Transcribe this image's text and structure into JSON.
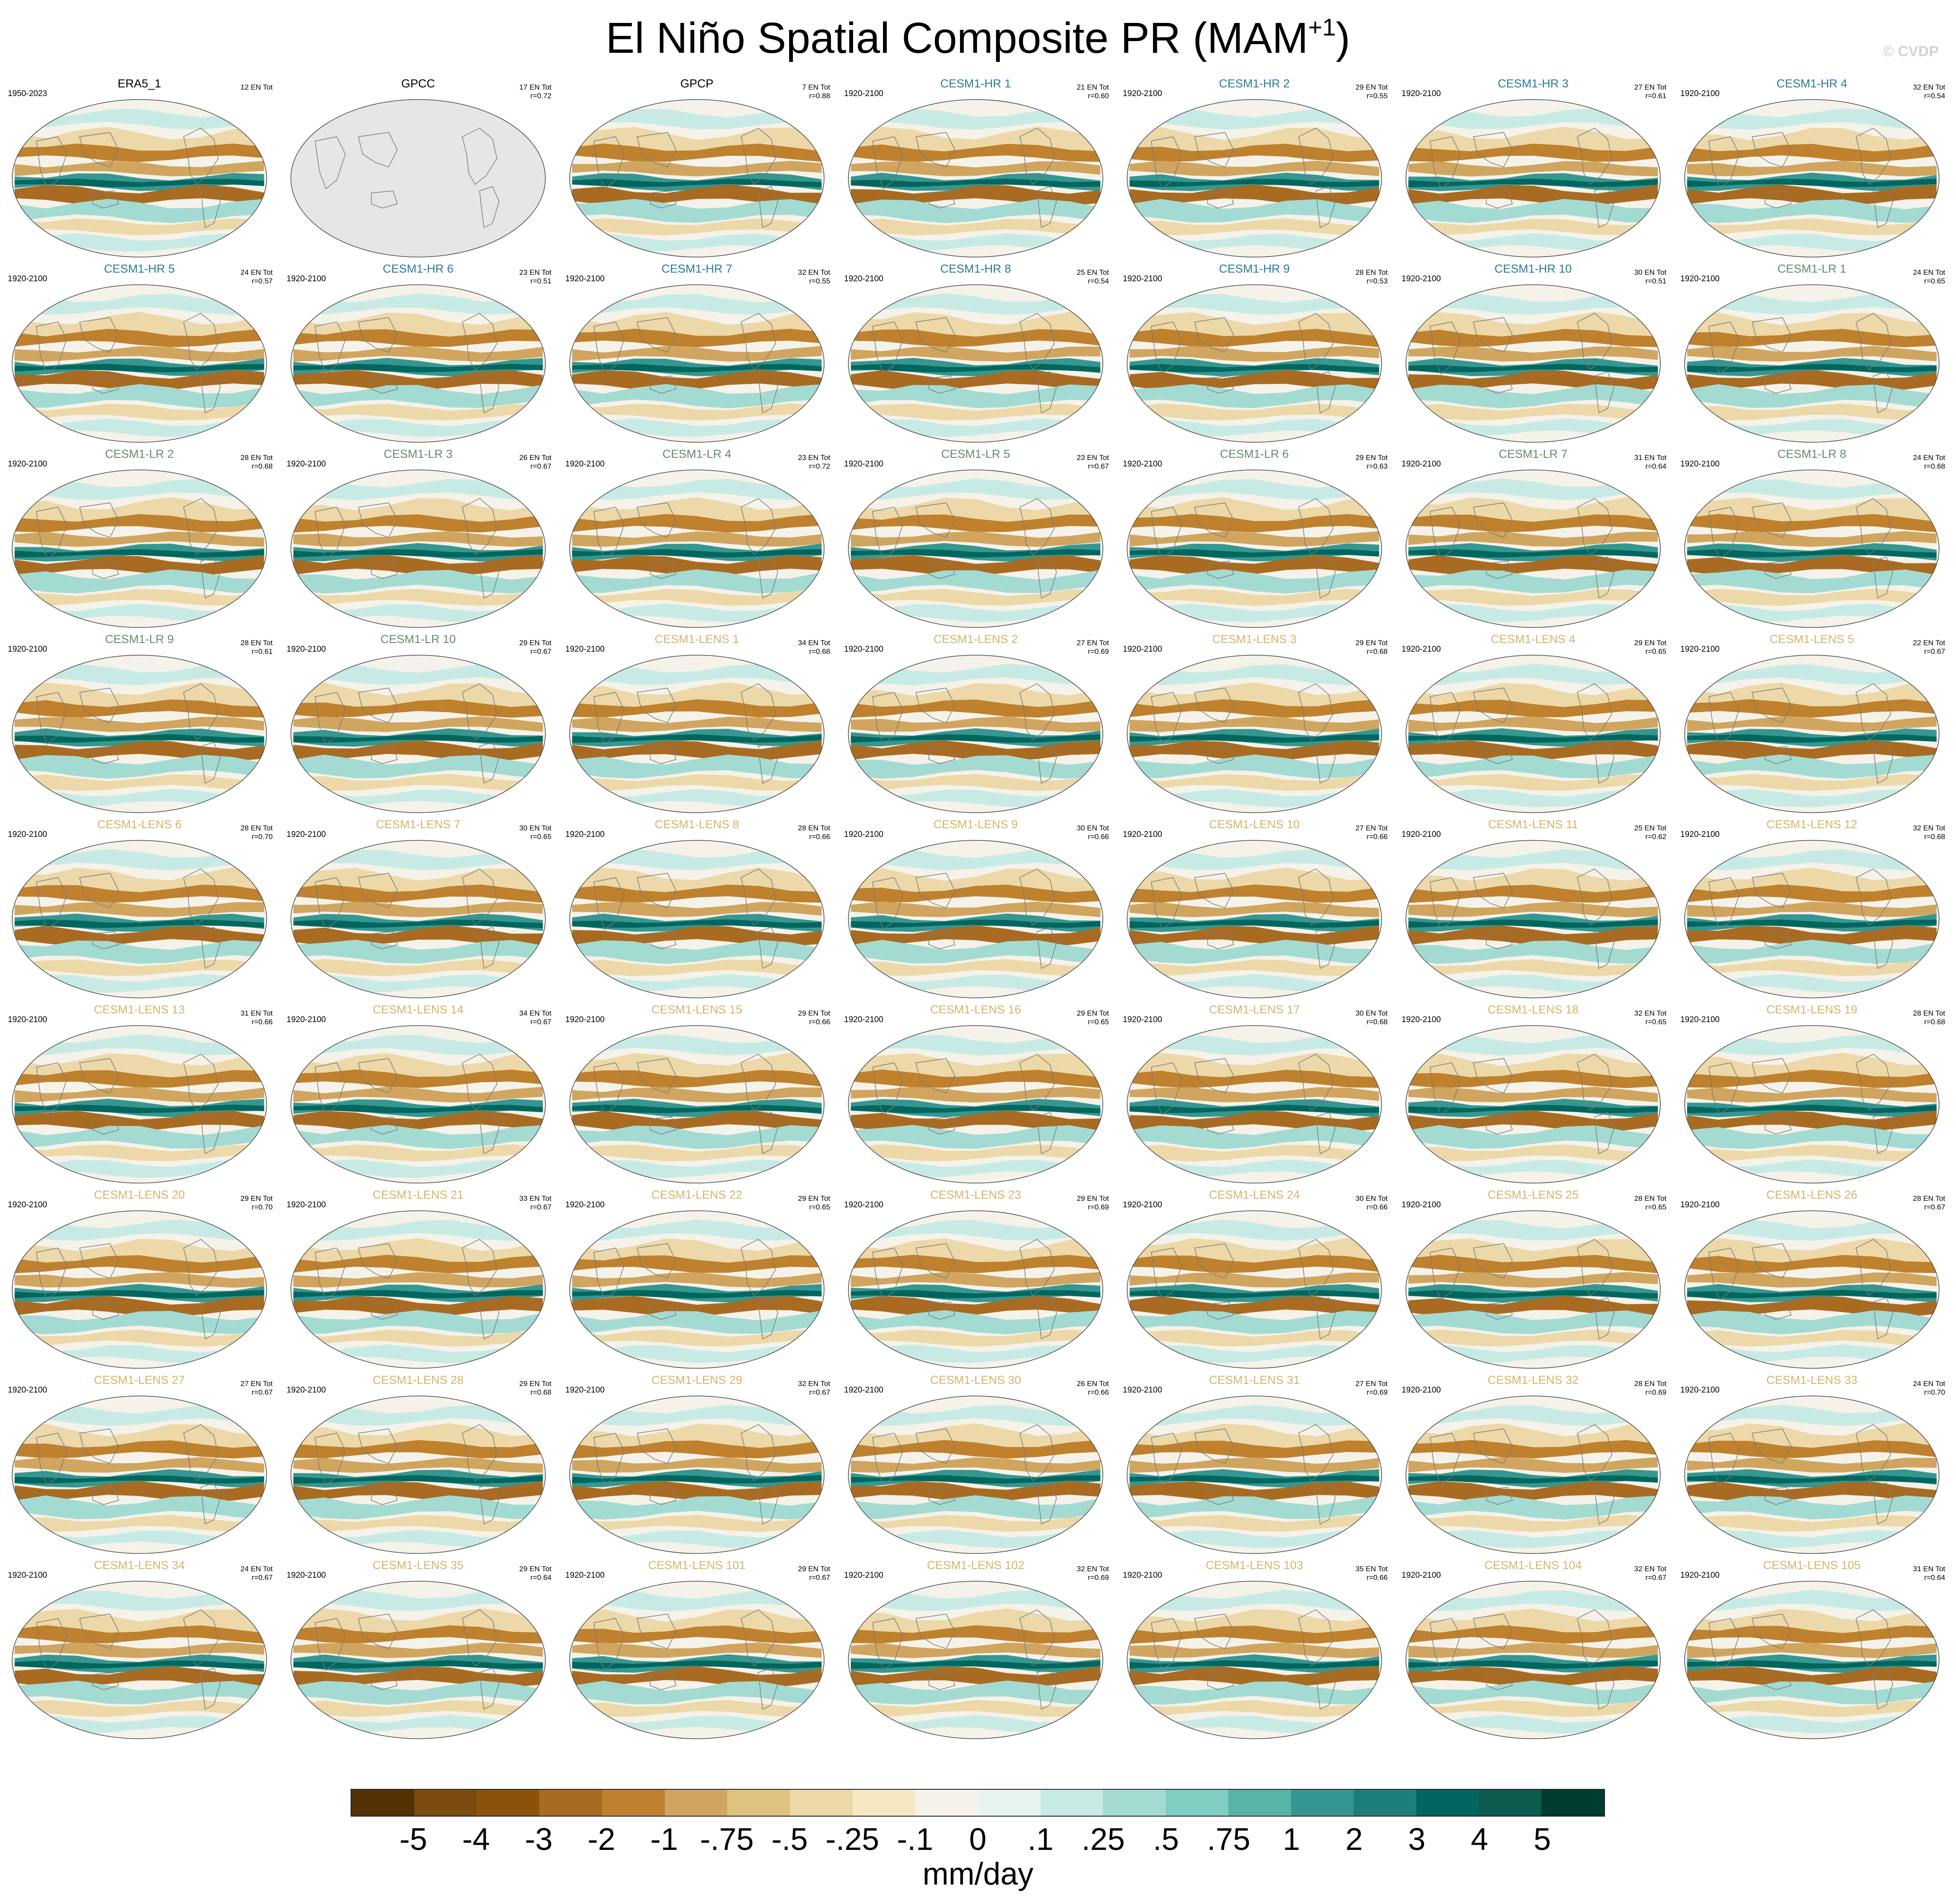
{
  "title": {
    "main": "El Niño Spatial Composite PR (MAM",
    "sup": "+1",
    "close": ")"
  },
  "credit": "© CVDP",
  "chart_data": {
    "type": "heatmap",
    "title": "El Niño Spatial Composite PR (MAM+1)",
    "colorbar": {
      "label": "mm/day",
      "ticks": [
        "-5",
        "-4",
        "-3",
        "-2",
        "-1",
        "-.75",
        "-.5",
        "-.25",
        "-.1",
        "0",
        ".1",
        ".25",
        ".5",
        ".75",
        "1",
        "2",
        "3",
        "4",
        "5"
      ],
      "colors": [
        "#543005",
        "#7a4a0f",
        "#8c510a",
        "#a96b22",
        "#bf812d",
        "#d0a55f",
        "#dfc27d",
        "#ecd8a8",
        "#f6e8c3",
        "#f5f2ea",
        "#e7f3f1",
        "#c7eae5",
        "#a3dbd3",
        "#80cdc1",
        "#58b3a7",
        "#35978f",
        "#1d7f77",
        "#01665e",
        "#0d5a4f",
        "#003c30"
      ]
    },
    "panels": [
      {
        "name": "ERA5_1",
        "years": "1950-2023",
        "events": "12 EN Tot",
        "r": "",
        "group": "obs"
      },
      {
        "name": "GPCC",
        "years": "",
        "events": "17 EN Tot",
        "r": "r=0.72",
        "group": "obs"
      },
      {
        "name": "GPCP",
        "years": "",
        "events": "7 EN Tot",
        "r": "r=0.88",
        "group": "obs"
      },
      {
        "name": "CESM1-HR 1",
        "years": "1920-2100",
        "events": "21 EN Tot",
        "r": "r=0.60",
        "group": "hr"
      },
      {
        "name": "CESM1-HR 2",
        "years": "1920-2100",
        "events": "29 EN Tot",
        "r": "r=0.55",
        "group": "hr"
      },
      {
        "name": "CESM1-HR 3",
        "years": "1920-2100",
        "events": "27 EN Tot",
        "r": "r=0.61",
        "group": "hr"
      },
      {
        "name": "CESM1-HR 4",
        "years": "1920-2100",
        "events": "32 EN Tot",
        "r": "r=0.54",
        "group": "hr"
      },
      {
        "name": "CESM1-HR 5",
        "years": "1920-2100",
        "events": "24 EN Tot",
        "r": "r=0.57",
        "group": "hr"
      },
      {
        "name": "CESM1-HR 6",
        "years": "1920-2100",
        "events": "23 EN Tot",
        "r": "r=0.51",
        "group": "hr"
      },
      {
        "name": "CESM1-HR 7",
        "years": "1920-2100",
        "events": "32 EN Tot",
        "r": "r=0.55",
        "group": "hr"
      },
      {
        "name": "CESM1-HR 8",
        "years": "1920-2100",
        "events": "25 EN Tot",
        "r": "r=0.54",
        "group": "hr"
      },
      {
        "name": "CESM1-HR 9",
        "years": "1920-2100",
        "events": "28 EN Tot",
        "r": "r=0.53",
        "group": "hr"
      },
      {
        "name": "CESM1-HR 10",
        "years": "1920-2100",
        "events": "30 EN Tot",
        "r": "r=0.51",
        "group": "hr"
      },
      {
        "name": "CESM1-LR 1",
        "years": "1920-2100",
        "events": "24 EN Tot",
        "r": "r=0.65",
        "group": "lr"
      },
      {
        "name": "CESM1-LR 2",
        "years": "1920-2100",
        "events": "28 EN Tot",
        "r": "r=0.68",
        "group": "lr"
      },
      {
        "name": "CESM1-LR 3",
        "years": "1920-2100",
        "events": "26 EN Tot",
        "r": "r=0.67",
        "group": "lr"
      },
      {
        "name": "CESM1-LR 4",
        "years": "1920-2100",
        "events": "23 EN Tot",
        "r": "r=0.72",
        "group": "lr"
      },
      {
        "name": "CESM1-LR 5",
        "years": "1920-2100",
        "events": "23 EN Tot",
        "r": "r=0.67",
        "group": "lr"
      },
      {
        "name": "CESM1-LR 6",
        "years": "1920-2100",
        "events": "29 EN Tot",
        "r": "r=0.63",
        "group": "lr"
      },
      {
        "name": "CESM1-LR 7",
        "years": "1920-2100",
        "events": "31 EN Tot",
        "r": "r=0.64",
        "group": "lr"
      },
      {
        "name": "CESM1-LR 8",
        "years": "1920-2100",
        "events": "24 EN Tot",
        "r": "r=0.68",
        "group": "lr"
      },
      {
        "name": "CESM1-LR 9",
        "years": "1920-2100",
        "events": "28 EN Tot",
        "r": "r=0.61",
        "group": "lr"
      },
      {
        "name": "CESM1-LR 10",
        "years": "1920-2100",
        "events": "29 EN Tot",
        "r": "r=0.67",
        "group": "lr"
      },
      {
        "name": "CESM1-LENS 1",
        "years": "1920-2100",
        "events": "34 EN Tot",
        "r": "r=0.68",
        "group": "lens"
      },
      {
        "name": "CESM1-LENS 2",
        "years": "1920-2100",
        "events": "27 EN Tot",
        "r": "r=0.69",
        "group": "lens"
      },
      {
        "name": "CESM1-LENS 3",
        "years": "1920-2100",
        "events": "29 EN Tot",
        "r": "r=0.68",
        "group": "lens"
      },
      {
        "name": "CESM1-LENS 4",
        "years": "1920-2100",
        "events": "29 EN Tot",
        "r": "r=0.65",
        "group": "lens"
      },
      {
        "name": "CESM1-LENS 5",
        "years": "1920-2100",
        "events": "22 EN Tot",
        "r": "r=0.67",
        "group": "lens"
      },
      {
        "name": "CESM1-LENS 6",
        "years": "1920-2100",
        "events": "28 EN Tot",
        "r": "r=0.70",
        "group": "lens"
      },
      {
        "name": "CESM1-LENS 7",
        "years": "1920-2100",
        "events": "30 EN Tot",
        "r": "r=0.65",
        "group": "lens"
      },
      {
        "name": "CESM1-LENS 8",
        "years": "1920-2100",
        "events": "28 EN Tot",
        "r": "r=0.66",
        "group": "lens"
      },
      {
        "name": "CESM1-LENS 9",
        "years": "1920-2100",
        "events": "30 EN Tot",
        "r": "r=0.66",
        "group": "lens"
      },
      {
        "name": "CESM1-LENS 10",
        "years": "1920-2100",
        "events": "27 EN Tot",
        "r": "r=0.66",
        "group": "lens"
      },
      {
        "name": "CESM1-LENS 11",
        "years": "1920-2100",
        "events": "25 EN Tot",
        "r": "r=0.62",
        "group": "lens"
      },
      {
        "name": "CESM1-LENS 12",
        "years": "1920-2100",
        "events": "32 EN Tot",
        "r": "r=0.68",
        "group": "lens"
      },
      {
        "name": "CESM1-LENS 13",
        "years": "1920-2100",
        "events": "31 EN Tot",
        "r": "r=0.66",
        "group": "lens"
      },
      {
        "name": "CESM1-LENS 14",
        "years": "1920-2100",
        "events": "34 EN Tot",
        "r": "r=0.67",
        "group": "lens"
      },
      {
        "name": "CESM1-LENS 15",
        "years": "1920-2100",
        "events": "29 EN Tot",
        "r": "r=0.66",
        "group": "lens"
      },
      {
        "name": "CESM1-LENS 16",
        "years": "1920-2100",
        "events": "29 EN Tot",
        "r": "r=0.65",
        "group": "lens"
      },
      {
        "name": "CESM1-LENS 17",
        "years": "1920-2100",
        "events": "30 EN Tot",
        "r": "r=0.68",
        "group": "lens"
      },
      {
        "name": "CESM1-LENS 18",
        "years": "1920-2100",
        "events": "32 EN Tot",
        "r": "r=0.65",
        "group": "lens"
      },
      {
        "name": "CESM1-LENS 19",
        "years": "1920-2100",
        "events": "28 EN Tot",
        "r": "r=0.68",
        "group": "lens"
      },
      {
        "name": "CESM1-LENS 20",
        "years": "1920-2100",
        "events": "29 EN Tot",
        "r": "r=0.70",
        "group": "lens"
      },
      {
        "name": "CESM1-LENS 21",
        "years": "1920-2100",
        "events": "33 EN Tot",
        "r": "r=0.67",
        "group": "lens"
      },
      {
        "name": "CESM1-LENS 22",
        "years": "1920-2100",
        "events": "29 EN Tot",
        "r": "r=0.65",
        "group": "lens"
      },
      {
        "name": "CESM1-LENS 23",
        "years": "1920-2100",
        "events": "29 EN Tot",
        "r": "r=0.69",
        "group": "lens"
      },
      {
        "name": "CESM1-LENS 24",
        "years": "1920-2100",
        "events": "30 EN Tot",
        "r": "r=0.66",
        "group": "lens"
      },
      {
        "name": "CESM1-LENS 25",
        "years": "1920-2100",
        "events": "28 EN Tot",
        "r": "r=0.65",
        "group": "lens"
      },
      {
        "name": "CESM1-LENS 26",
        "years": "1920-2100",
        "events": "28 EN Tot",
        "r": "r=0.67",
        "group": "lens"
      },
      {
        "name": "CESM1-LENS 27",
        "years": "1920-2100",
        "events": "27 EN Tot",
        "r": "r=0.67",
        "group": "lens"
      },
      {
        "name": "CESM1-LENS 28",
        "years": "1920-2100",
        "events": "29 EN Tot",
        "r": "r=0.68",
        "group": "lens"
      },
      {
        "name": "CESM1-LENS 29",
        "years": "1920-2100",
        "events": "32 EN Tot",
        "r": "r=0.67",
        "group": "lens"
      },
      {
        "name": "CESM1-LENS 30",
        "years": "1920-2100",
        "events": "26 EN Tot",
        "r": "r=0.66",
        "group": "lens"
      },
      {
        "name": "CESM1-LENS 31",
        "years": "1920-2100",
        "events": "27 EN Tot",
        "r": "r=0.69",
        "group": "lens"
      },
      {
        "name": "CESM1-LENS 32",
        "years": "1920-2100",
        "events": "28 EN Tot",
        "r": "r=0.69",
        "group": "lens"
      },
      {
        "name": "CESM1-LENS 33",
        "years": "1920-2100",
        "events": "24 EN Tot",
        "r": "r=0.70",
        "group": "lens"
      },
      {
        "name": "CESM1-LENS 34",
        "years": "1920-2100",
        "events": "24 EN Tot",
        "r": "r=0.67",
        "group": "lens"
      },
      {
        "name": "CESM1-LENS 35",
        "years": "1920-2100",
        "events": "29 EN Tot",
        "r": "r=0.64",
        "group": "lens"
      },
      {
        "name": "CESM1-LENS 101",
        "years": "1920-2100",
        "events": "29 EN Tot",
        "r": "r=0.67",
        "group": "lens"
      },
      {
        "name": "CESM1-LENS 102",
        "years": "1920-2100",
        "events": "32 EN Tot",
        "r": "r=0.69",
        "group": "lens"
      },
      {
        "name": "CESM1-LENS 103",
        "years": "1920-2100",
        "events": "35 EN Tot",
        "r": "r=0.66",
        "group": "lens"
      },
      {
        "name": "CESM1-LENS 104",
        "years": "1920-2100",
        "events": "32 EN Tot",
        "r": "r=0.67",
        "group": "lens"
      },
      {
        "name": "CESM1-LENS 105",
        "years": "1920-2100",
        "events": "31 EN Tot",
        "r": "r=0.64",
        "group": "lens"
      }
    ],
    "group_colors": {
      "obs": "#000000",
      "hr": "#2a7a9b",
      "lr": "#5f8f6a",
      "lens": "#d6b46a"
    },
    "missing_color": "#e6e6e6"
  }
}
